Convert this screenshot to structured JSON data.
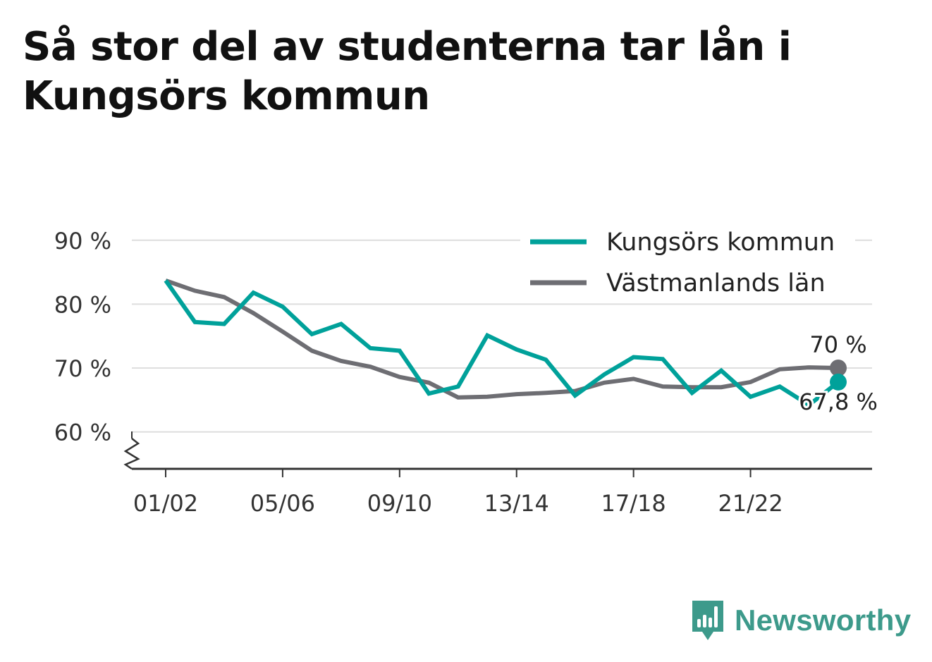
{
  "title": "Så stor del av studenterna tar lån i Kungsörs kommun",
  "brand": {
    "name": "Newsworthy",
    "icon": "newsworthy-logo-icon",
    "color": "#3d9a8b"
  },
  "chart_data": {
    "type": "line",
    "title": "Så stor del av studenterna tar lån i Kungsörs kommun",
    "xlabel": "",
    "ylabel": "",
    "categories": [
      "01/02",
      "02/03",
      "03/04",
      "04/05",
      "05/06",
      "06/07",
      "07/08",
      "08/09",
      "09/10",
      "10/11",
      "11/12",
      "12/13",
      "13/14",
      "14/15",
      "15/16",
      "16/17",
      "17/18",
      "18/19",
      "19/20",
      "20/21",
      "21/22",
      "22/23",
      "23/24",
      "24/25"
    ],
    "x_tick_labels": [
      "01/02",
      "05/06",
      "09/10",
      "13/14",
      "17/18",
      "21/22"
    ],
    "y_ticks": [
      60,
      70,
      80,
      90
    ],
    "y_tick_labels": [
      "60 %",
      "70 %",
      "80 %",
      "90 %"
    ],
    "ylim": [
      54,
      91
    ],
    "y_axis_break": true,
    "grid": true,
    "legend_position": "top-right",
    "series": [
      {
        "name": "Kungsörs kommun",
        "color": "#00a19a",
        "values": [
          83.7,
          77.2,
          76.9,
          81.8,
          79.6,
          75.3,
          76.9,
          73.1,
          72.7,
          66.0,
          67.1,
          75.1,
          72.9,
          71.3,
          65.7,
          69.0,
          71.7,
          71.4,
          66.1,
          69.6,
          65.5,
          67.1,
          64.2,
          67.8
        ],
        "end_label": "67,8 %"
      },
      {
        "name": "Västmanlands län",
        "color": "#6e6e73",
        "values": [
          83.7,
          82.1,
          81.1,
          78.6,
          75.7,
          72.7,
          71.1,
          70.2,
          68.6,
          67.7,
          65.4,
          65.5,
          65.9,
          66.1,
          66.4,
          67.7,
          68.3,
          67.1,
          67.0,
          67.0,
          67.8,
          69.8,
          70.1,
          70.0
        ],
        "end_label": "70 %"
      }
    ]
  }
}
